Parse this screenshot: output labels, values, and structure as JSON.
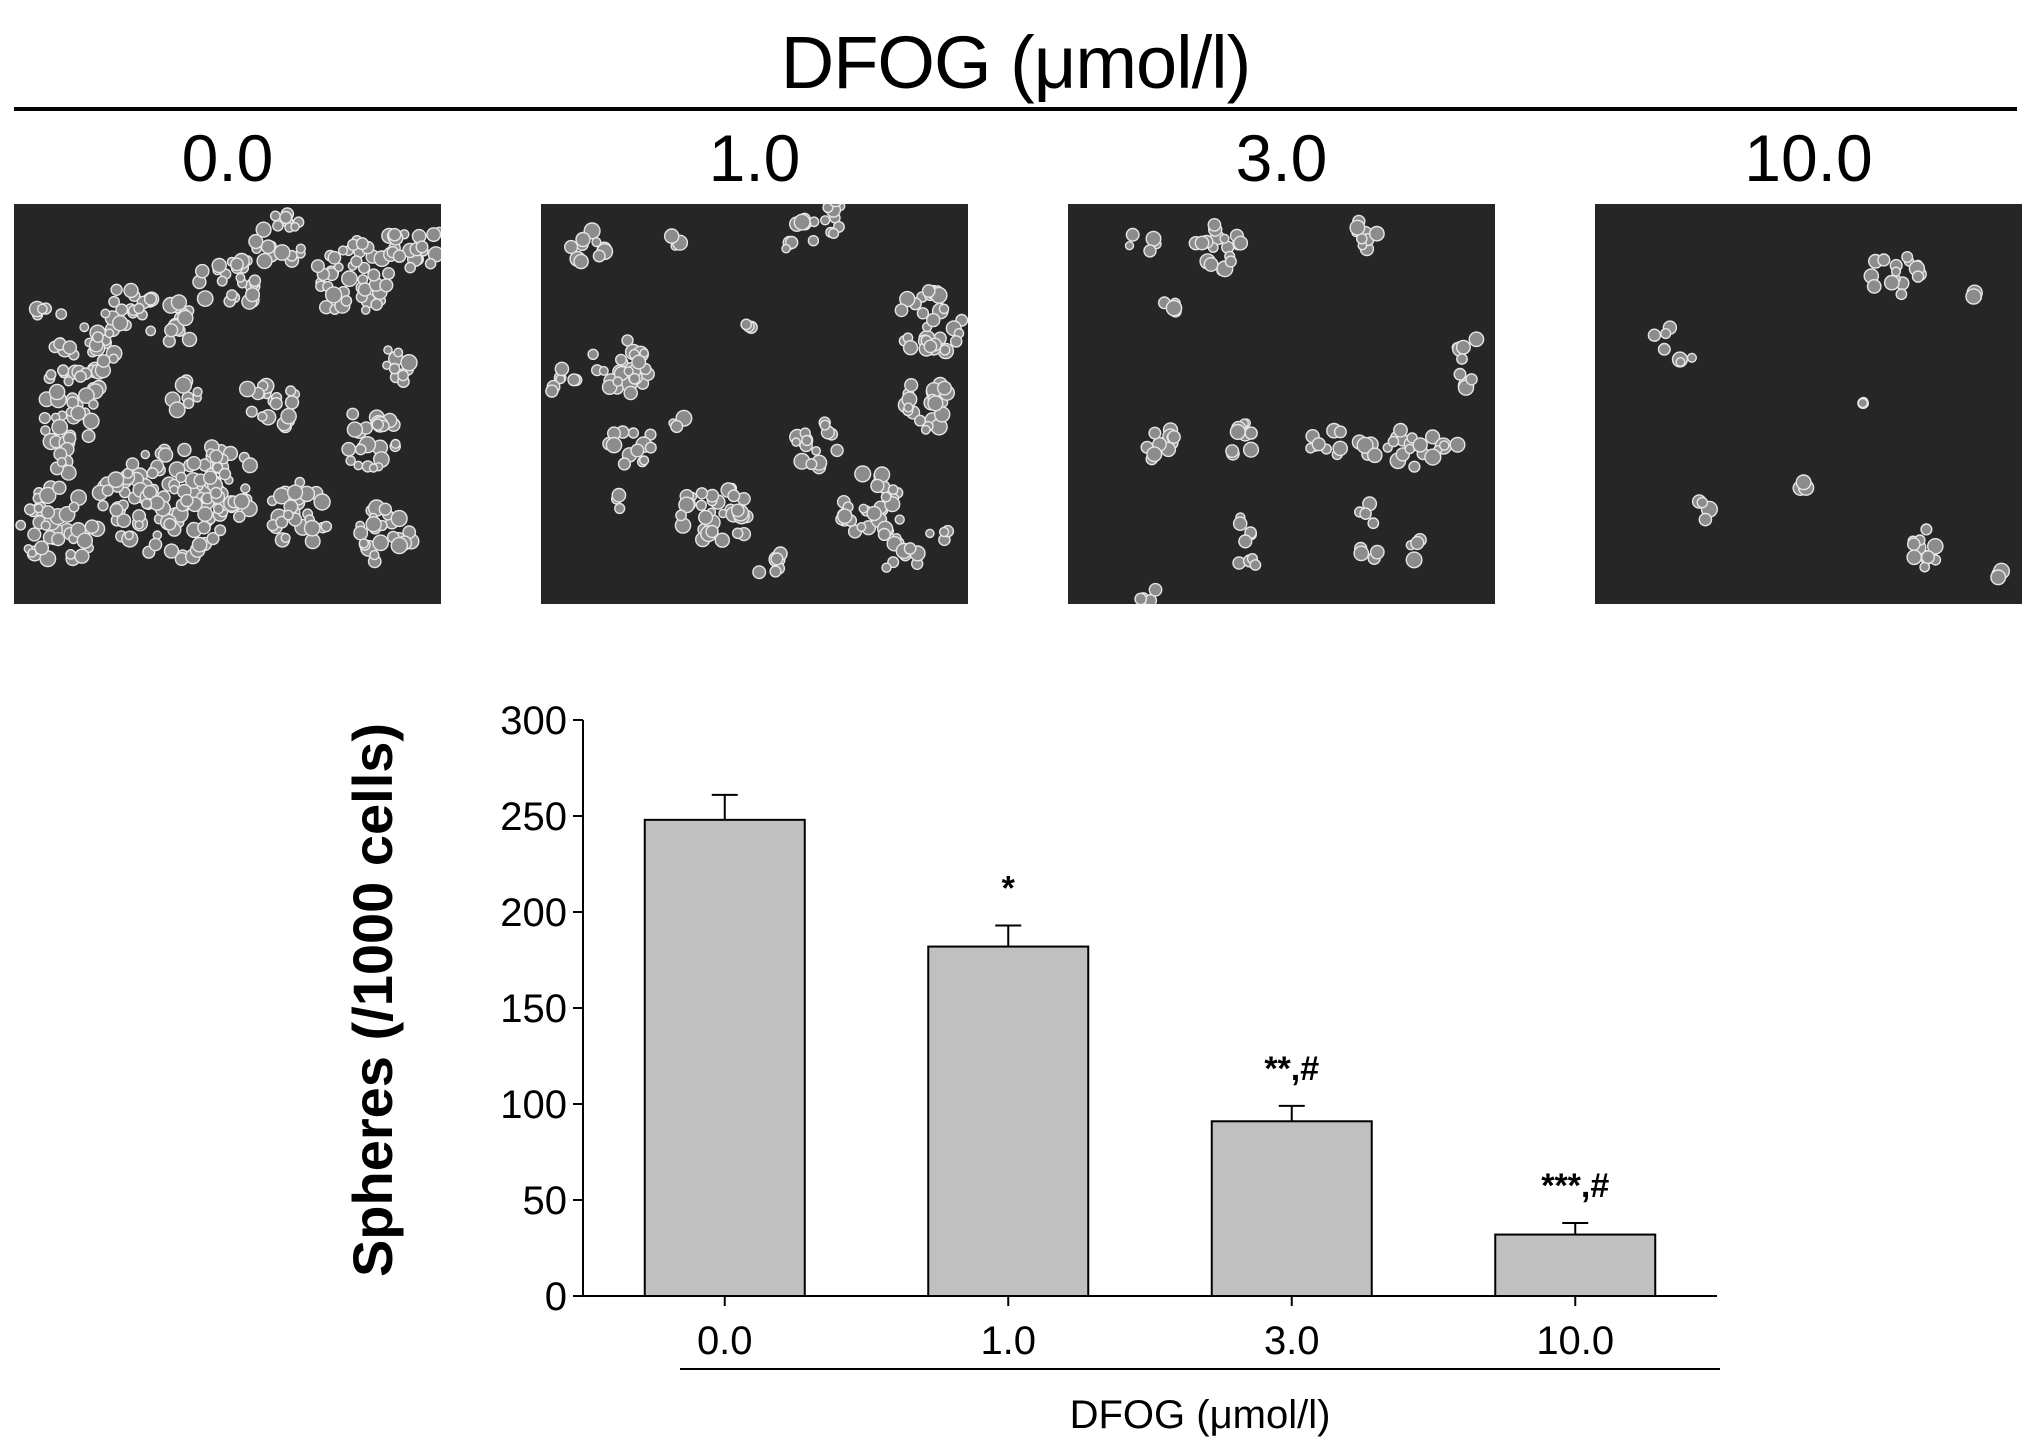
{
  "figure": {
    "top_title": "DFOG (μmol/l)",
    "panels": [
      {
        "label": "0.0",
        "image": "micrograph of dense cell spheres"
      },
      {
        "label": "1.0",
        "image": "micrograph of cell spheres"
      },
      {
        "label": "3.0",
        "image": "micrograph of fewer cell spheres"
      },
      {
        "label": "10.0",
        "image": "micrograph of sparse cell spheres"
      }
    ]
  },
  "chart_data": {
    "type": "bar",
    "categories": [
      "0.0",
      "1.0",
      "3.0",
      "10.0"
    ],
    "values": [
      248,
      182,
      91,
      32
    ],
    "errors": [
      13,
      11,
      8,
      6
    ],
    "annotations": [
      "",
      "*",
      "**,#",
      "***,#"
    ],
    "ylabel": "Spheres (/1000 cells)",
    "xlabel": "DFOG (μmol/l)",
    "ylim": [
      0,
      300
    ],
    "yticks": [
      0,
      50,
      100,
      150,
      200,
      250,
      300
    ],
    "bar_color": "#c0c0c0",
    "grid": false
  }
}
